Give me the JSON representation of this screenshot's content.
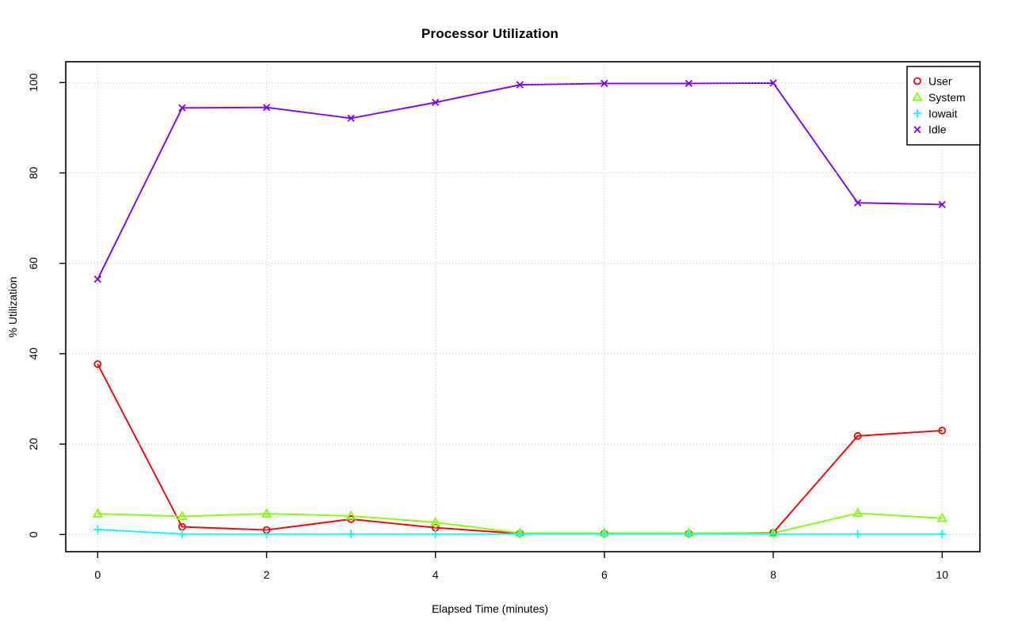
{
  "chart_data": {
    "type": "line",
    "title": "Processor Utilization",
    "xlabel": "Elapsed Time (minutes)",
    "ylabel": "% Utilization",
    "x": [
      0,
      1,
      2,
      3,
      4,
      5,
      6,
      7,
      8,
      9,
      10
    ],
    "xticks": [
      0,
      2,
      4,
      6,
      8,
      10
    ],
    "yticks": [
      0,
      20,
      40,
      60,
      80,
      100
    ],
    "xlim": [
      -0.4,
      10.4
    ],
    "ylim": [
      -4,
      104
    ],
    "grid": true,
    "grid_style": "dotted",
    "legend_position": "top-right",
    "legend_labels": [
      "User",
      "System",
      "Iowait",
      "Idle"
    ],
    "series": [
      {
        "name": "User",
        "marker": "circle",
        "color": "#FF0000",
        "values": [
          37.7,
          1.7,
          1.0,
          3.4,
          1.5,
          0.2,
          0.2,
          0.2,
          0.4,
          21.8,
          23.0
        ]
      },
      {
        "name": "System",
        "marker": "triangle",
        "color": "#80FF00",
        "values": [
          4.6,
          4.0,
          4.6,
          4.1,
          2.7,
          0.3,
          0.3,
          0.3,
          0.3,
          4.7,
          3.6
        ]
      },
      {
        "name": "Iowait",
        "marker": "plus",
        "color": "#00FFFF",
        "values": [
          1.1,
          0.1,
          0.1,
          0.1,
          0.1,
          0.1,
          0.1,
          0.1,
          0.1,
          0.1,
          0.1
        ]
      },
      {
        "name": "Idle",
        "marker": "x",
        "color": "#8000FF",
        "values": [
          56.5,
          94.4,
          94.5,
          92.1,
          95.6,
          99.5,
          99.8,
          99.8,
          99.9,
          73.4,
          73.0
        ]
      }
    ],
    "colors": {
      "background": "#FFFFFF",
      "axis": "#000000",
      "grid": "#C6C6C6",
      "text": "#000000"
    }
  }
}
